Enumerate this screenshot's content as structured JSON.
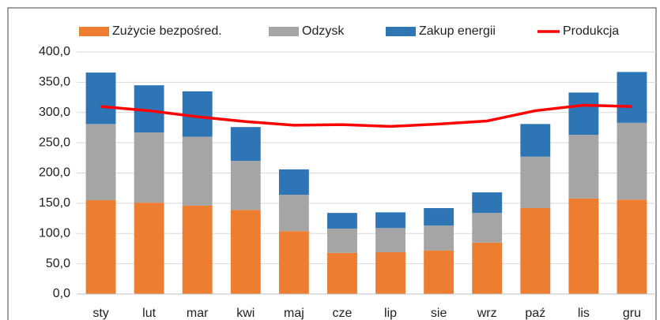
{
  "chart_data": {
    "type": "bar",
    "categories": [
      "sty",
      "lut",
      "mar",
      "kwi",
      "maj",
      "cze",
      "lip",
      "sie",
      "wrz",
      "paź",
      "lis",
      "gru"
    ],
    "series": [
      {
        "name": "Zużycie bezpośred.",
        "color": "#ed7d31",
        "values": [
          155,
          151,
          146,
          139,
          104,
          68,
          69,
          72,
          85,
          142,
          158,
          156
        ]
      },
      {
        "name": "Odzysk",
        "color": "#a5a5a5",
        "values": [
          126,
          116,
          114,
          81,
          60,
          40,
          40,
          41,
          49,
          85,
          105,
          127
        ]
      },
      {
        "name": "Zakup energii",
        "color": "#2e75b6",
        "values": [
          85,
          78,
          75,
          56,
          42,
          26,
          26,
          29,
          34,
          54,
          70,
          84
        ]
      },
      {
        "name": "Produkcja",
        "color": "#ff0000",
        "type": "line",
        "values": [
          310,
          303,
          293,
          285,
          279,
          280,
          277,
          281,
          286,
          303,
          312,
          310
        ]
      }
    ],
    "stacked": true,
    "ylim": [
      0,
      400
    ],
    "yticks": [
      {
        "value": 0,
        "label": "0,0"
      },
      {
        "value": 50,
        "label": "50,0"
      },
      {
        "value": 100,
        "label": "100,0"
      },
      {
        "value": 150,
        "label": "150,0"
      },
      {
        "value": 200,
        "label": "200,0"
      },
      {
        "value": 250,
        "label": "250,0"
      },
      {
        "value": 300,
        "label": "300,0"
      },
      {
        "value": 350,
        "label": "350,0"
      },
      {
        "value": 400,
        "label": "400,0"
      }
    ],
    "grid": true,
    "legend": "top"
  }
}
